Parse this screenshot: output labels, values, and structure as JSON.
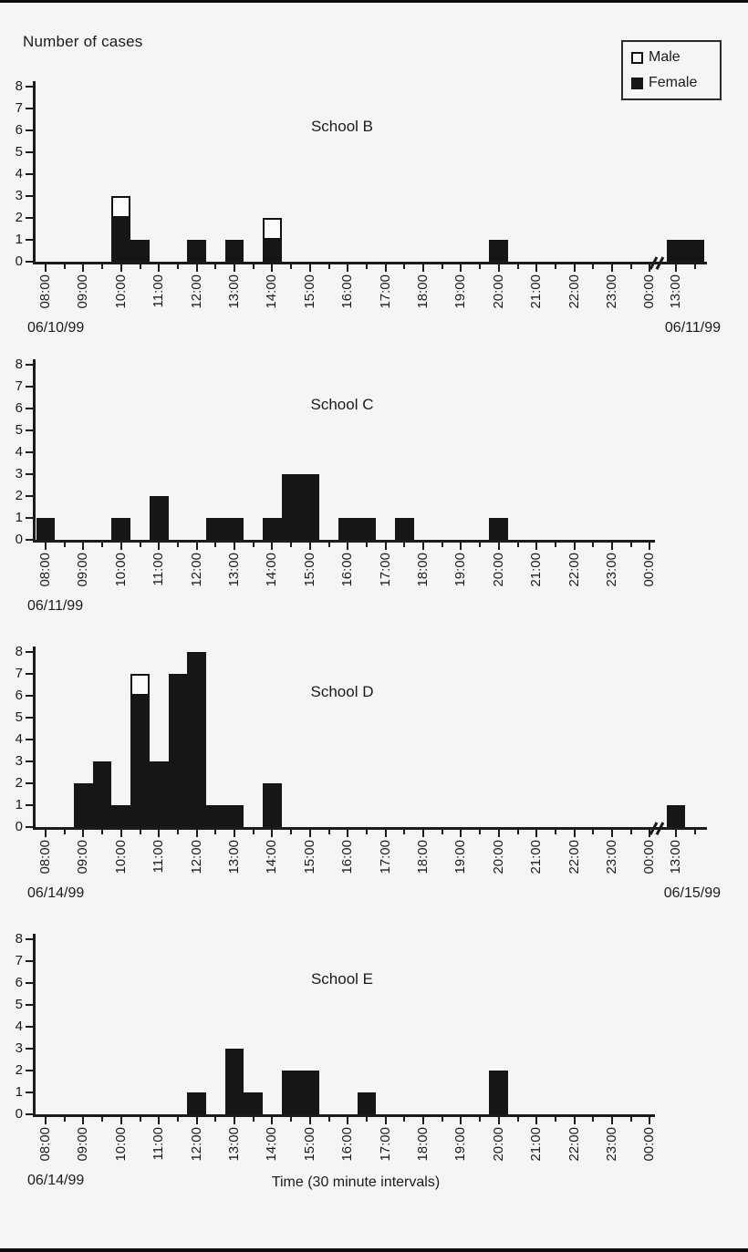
{
  "figure": {
    "y_axis_title": "Number of cases",
    "legend": {
      "male": "Male",
      "female": "Female"
    },
    "colors": {
      "ink": "#1b1b1b",
      "female_fill": "#161616",
      "male_fill": "#fbfbfa",
      "background": "#f5f5f4"
    }
  },
  "chart_data": [
    {
      "type": "bar",
      "title": "School B",
      "date_start": "06/10/99",
      "date_end": "06/11/99",
      "axis_break_to_next_day": true,
      "extra_tick_label": "13:00",
      "ylim": [
        0,
        8
      ],
      "yticks": [
        0,
        1,
        2,
        3,
        4,
        5,
        6,
        7,
        8
      ],
      "x_tick_labels": [
        "08:00",
        "09:00",
        "10:00",
        "11:00",
        "12:00",
        "13:00",
        "14:00",
        "15:00",
        "16:00",
        "17:00",
        "18:00",
        "19:00",
        "20:00",
        "21:00",
        "22:00",
        "23:00",
        "00:00"
      ],
      "bars": [
        {
          "time": "10:00",
          "female": 2,
          "male": 1
        },
        {
          "time": "10:30",
          "female": 1,
          "male": 0
        },
        {
          "time": "12:00",
          "female": 1,
          "male": 0
        },
        {
          "time": "13:00",
          "female": 1,
          "male": 0
        },
        {
          "time": "14:00",
          "female": 1,
          "male": 1
        },
        {
          "time": "20:00",
          "female": 1,
          "male": 0
        },
        {
          "time": "13:00",
          "female": 1,
          "male": 0,
          "next_day": true
        },
        {
          "time": "13:30",
          "female": 1,
          "male": 0,
          "next_day": true
        }
      ]
    },
    {
      "type": "bar",
      "title": "School C",
      "date_start": "06/11/99",
      "axis_break_to_next_day": false,
      "ylim": [
        0,
        8
      ],
      "yticks": [
        0,
        1,
        2,
        3,
        4,
        5,
        6,
        7,
        8
      ],
      "x_tick_labels": [
        "08:00",
        "09:00",
        "10:00",
        "11:00",
        "12:00",
        "13:00",
        "14:00",
        "15:00",
        "16:00",
        "17:00",
        "18:00",
        "19:00",
        "20:00",
        "21:00",
        "22:00",
        "23:00",
        "00:00"
      ],
      "bars": [
        {
          "time": "08:00",
          "female": 1,
          "male": 0
        },
        {
          "time": "10:00",
          "female": 1,
          "male": 0
        },
        {
          "time": "11:00",
          "female": 2,
          "male": 0
        },
        {
          "time": "12:30",
          "female": 1,
          "male": 0
        },
        {
          "time": "13:00",
          "female": 1,
          "male": 0
        },
        {
          "time": "14:00",
          "female": 1,
          "male": 0
        },
        {
          "time": "14:30",
          "female": 3,
          "male": 0
        },
        {
          "time": "15:00",
          "female": 3,
          "male": 0
        },
        {
          "time": "16:00",
          "female": 1,
          "male": 0
        },
        {
          "time": "16:30",
          "female": 1,
          "male": 0
        },
        {
          "time": "17:30",
          "female": 1,
          "male": 0
        },
        {
          "time": "20:00",
          "female": 1,
          "male": 0
        }
      ]
    },
    {
      "type": "bar",
      "title": "School D",
      "date_start": "06/14/99",
      "date_end": "06/15/99",
      "axis_break_to_next_day": true,
      "extra_tick_label": "13:00",
      "ylim": [
        0,
        8
      ],
      "yticks": [
        0,
        1,
        2,
        3,
        4,
        5,
        6,
        7,
        8
      ],
      "x_tick_labels": [
        "08:00",
        "09:00",
        "10:00",
        "11:00",
        "12:00",
        "13:00",
        "14:00",
        "15:00",
        "16:00",
        "17:00",
        "18:00",
        "19:00",
        "20:00",
        "21:00",
        "22:00",
        "23:00",
        "00:00"
      ],
      "bars": [
        {
          "time": "09:00",
          "female": 2,
          "male": 0
        },
        {
          "time": "09:30",
          "female": 3,
          "male": 0
        },
        {
          "time": "10:00",
          "female": 1,
          "male": 0
        },
        {
          "time": "10:30",
          "female": 6,
          "male": 1
        },
        {
          "time": "11:00",
          "female": 3,
          "male": 0
        },
        {
          "time": "11:30",
          "female": 7,
          "male": 0
        },
        {
          "time": "12:00",
          "female": 8,
          "male": 0
        },
        {
          "time": "12:30",
          "female": 1,
          "male": 0
        },
        {
          "time": "13:00",
          "female": 1,
          "male": 0
        },
        {
          "time": "14:00",
          "female": 2,
          "male": 0
        },
        {
          "time": "13:00",
          "female": 1,
          "male": 0,
          "next_day": true
        }
      ]
    },
    {
      "type": "bar",
      "title": "School E",
      "date_start": "06/14/99",
      "axis_break_to_next_day": false,
      "xlabel": "Time (30 minute intervals)",
      "ylim": [
        0,
        8
      ],
      "yticks": [
        0,
        1,
        2,
        3,
        4,
        5,
        6,
        7,
        8
      ],
      "x_tick_labels": [
        "08:00",
        "09:00",
        "10:00",
        "11:00",
        "12:00",
        "13:00",
        "14:00",
        "15:00",
        "16:00",
        "17:00",
        "18:00",
        "19:00",
        "20:00",
        "21:00",
        "22:00",
        "23:00",
        "00:00"
      ],
      "bars": [
        {
          "time": "12:00",
          "female": 1,
          "male": 0
        },
        {
          "time": "13:00",
          "female": 3,
          "male": 0
        },
        {
          "time": "13:30",
          "female": 1,
          "male": 0
        },
        {
          "time": "14:30",
          "female": 2,
          "male": 0
        },
        {
          "time": "15:00",
          "female": 2,
          "male": 0
        },
        {
          "time": "16:30",
          "female": 1,
          "male": 0
        },
        {
          "time": "20:00",
          "female": 2,
          "male": 0
        }
      ]
    }
  ]
}
